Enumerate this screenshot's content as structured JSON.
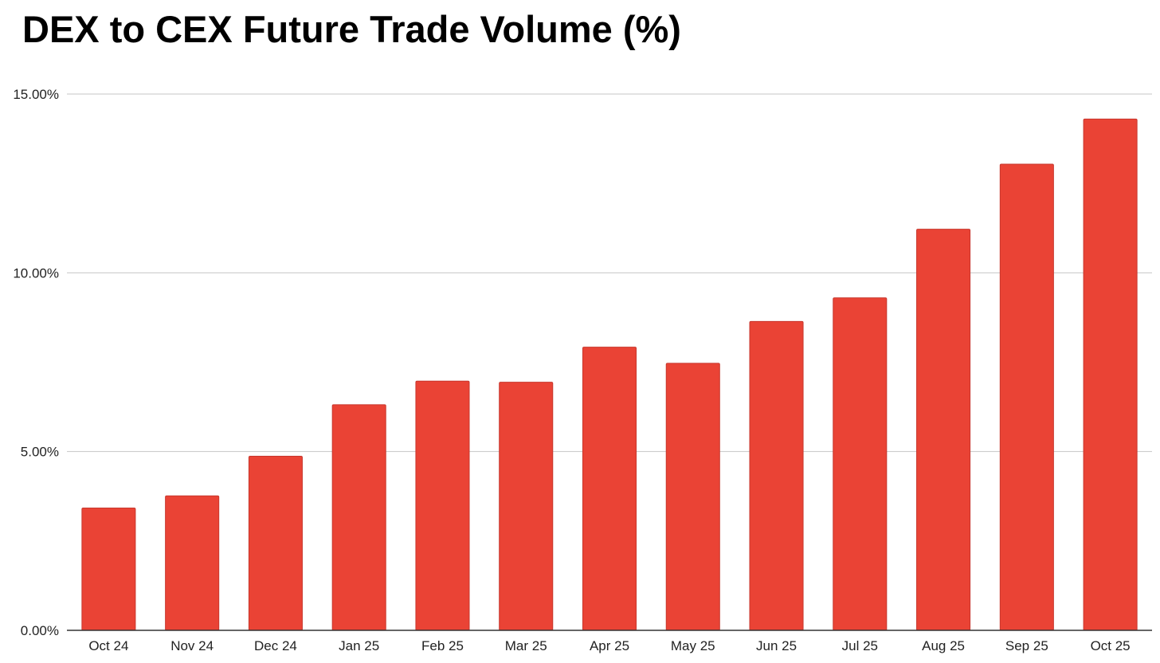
{
  "chart_data": {
    "type": "bar",
    "title": "DEX to CEX Future Trade Volume (%)",
    "xlabel": "",
    "ylabel": "",
    "categories": [
      "Oct 24",
      "Nov 24",
      "Dec 24",
      "Jan 25",
      "Feb 25",
      "Mar 25",
      "Apr 25",
      "May 25",
      "Jun 25",
      "Jul 25",
      "Aug 25",
      "Sep 25",
      "Oct 25"
    ],
    "values": [
      3.42,
      3.76,
      4.87,
      6.31,
      6.97,
      6.94,
      7.92,
      7.47,
      8.64,
      9.3,
      11.22,
      13.04,
      14.3
    ],
    "ylim": [
      0,
      15
    ],
    "yticks": [
      0,
      5,
      10,
      15
    ],
    "ytick_labels": [
      "0.00%",
      "5.00%",
      "10.00%",
      "15.00%"
    ],
    "grid": true,
    "legend": "none",
    "colors": {
      "bar": "#ea4335",
      "gridline": "#c6c6c6",
      "baseline": "#333333"
    }
  }
}
